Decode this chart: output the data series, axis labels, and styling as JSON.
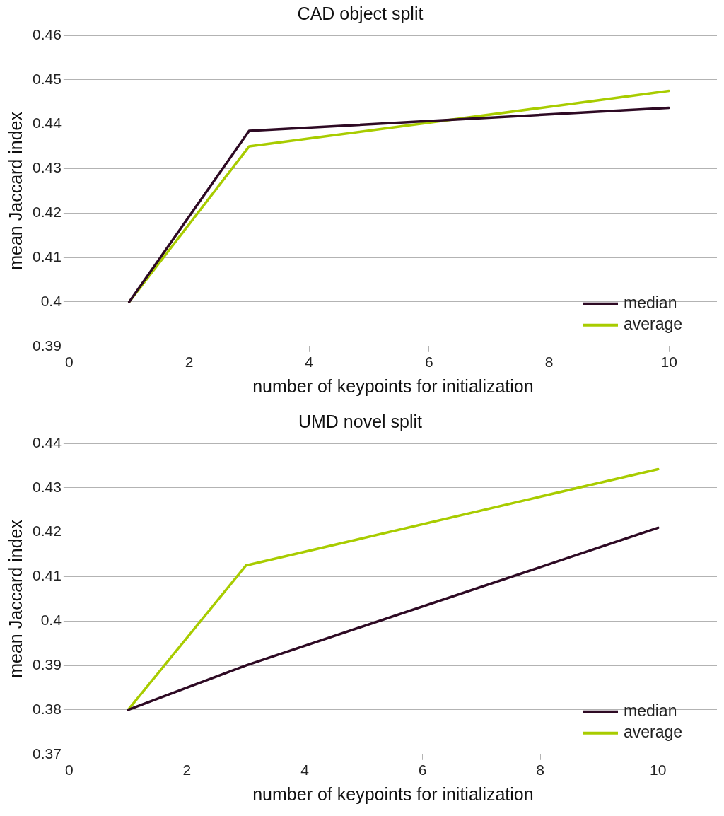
{
  "chart_data": [
    {
      "type": "line",
      "title": "CAD object split",
      "xlabel": "number of keypoints for initialization",
      "ylabel": "mean Jaccard index",
      "x": [
        1,
        3,
        10
      ],
      "series": [
        {
          "name": "median",
          "color": "#2e0a24",
          "values": [
            0.4,
            0.4385,
            0.4437
          ]
        },
        {
          "name": "average",
          "color": "#a8cc00",
          "values": [
            0.4,
            0.435,
            0.4475
          ]
        }
      ],
      "xlim": [
        0,
        10.8
      ],
      "xticks": [
        0,
        2,
        4,
        6,
        8,
        10
      ],
      "ylim": [
        0.39,
        0.46
      ],
      "yticks": [
        0.39,
        0.4,
        0.41,
        0.42,
        0.43,
        0.44,
        0.45,
        0.46
      ],
      "grid": "y",
      "legend": "bottom right",
      "marker": "none",
      "line_style": "solid"
    },
    {
      "type": "line",
      "title": "UMD novel split",
      "xlabel": "number of keypoints for initialization",
      "ylabel": "mean Jaccard index",
      "x": [
        1,
        3,
        10
      ],
      "series": [
        {
          "name": "median",
          "color": "#2e0a24",
          "values": [
            0.38,
            0.39,
            0.421
          ]
        },
        {
          "name": "average",
          "color": "#a8cc00",
          "values": [
            0.38,
            0.4125,
            0.4342
          ]
        }
      ],
      "xlim": [
        0,
        11
      ],
      "xticks": [
        0,
        2,
        4,
        6,
        8,
        10
      ],
      "ylim": [
        0.37,
        0.44
      ],
      "yticks": [
        0.37,
        0.38,
        0.39,
        0.4,
        0.41,
        0.42,
        0.43,
        0.44
      ],
      "grid": "y",
      "legend": "bottom right",
      "marker": "none",
      "line_style": "solid"
    }
  ]
}
